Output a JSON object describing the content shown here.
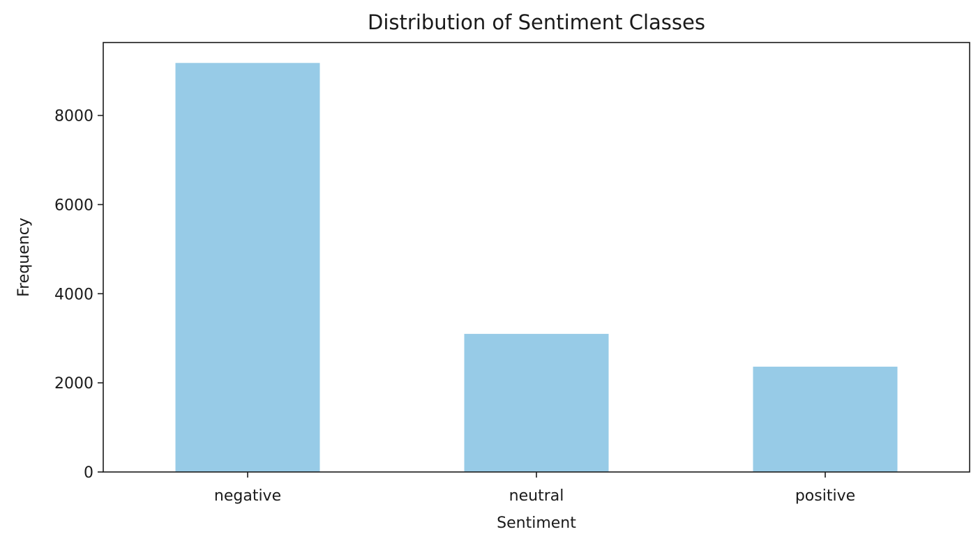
{
  "chart_data": {
    "type": "bar",
    "title": "Distribution of Sentiment Classes",
    "xlabel": "Sentiment",
    "ylabel": "Frequency",
    "categories": [
      "negative",
      "neutral",
      "positive"
    ],
    "values": [
      9178,
      3099,
      2363
    ],
    "ylim": [
      0,
      9636
    ],
    "yticks": [
      0,
      2000,
      4000,
      6000,
      8000
    ],
    "grid": false,
    "bar_color": "#97cbe7",
    "axis_color": "#1a1a1a"
  }
}
